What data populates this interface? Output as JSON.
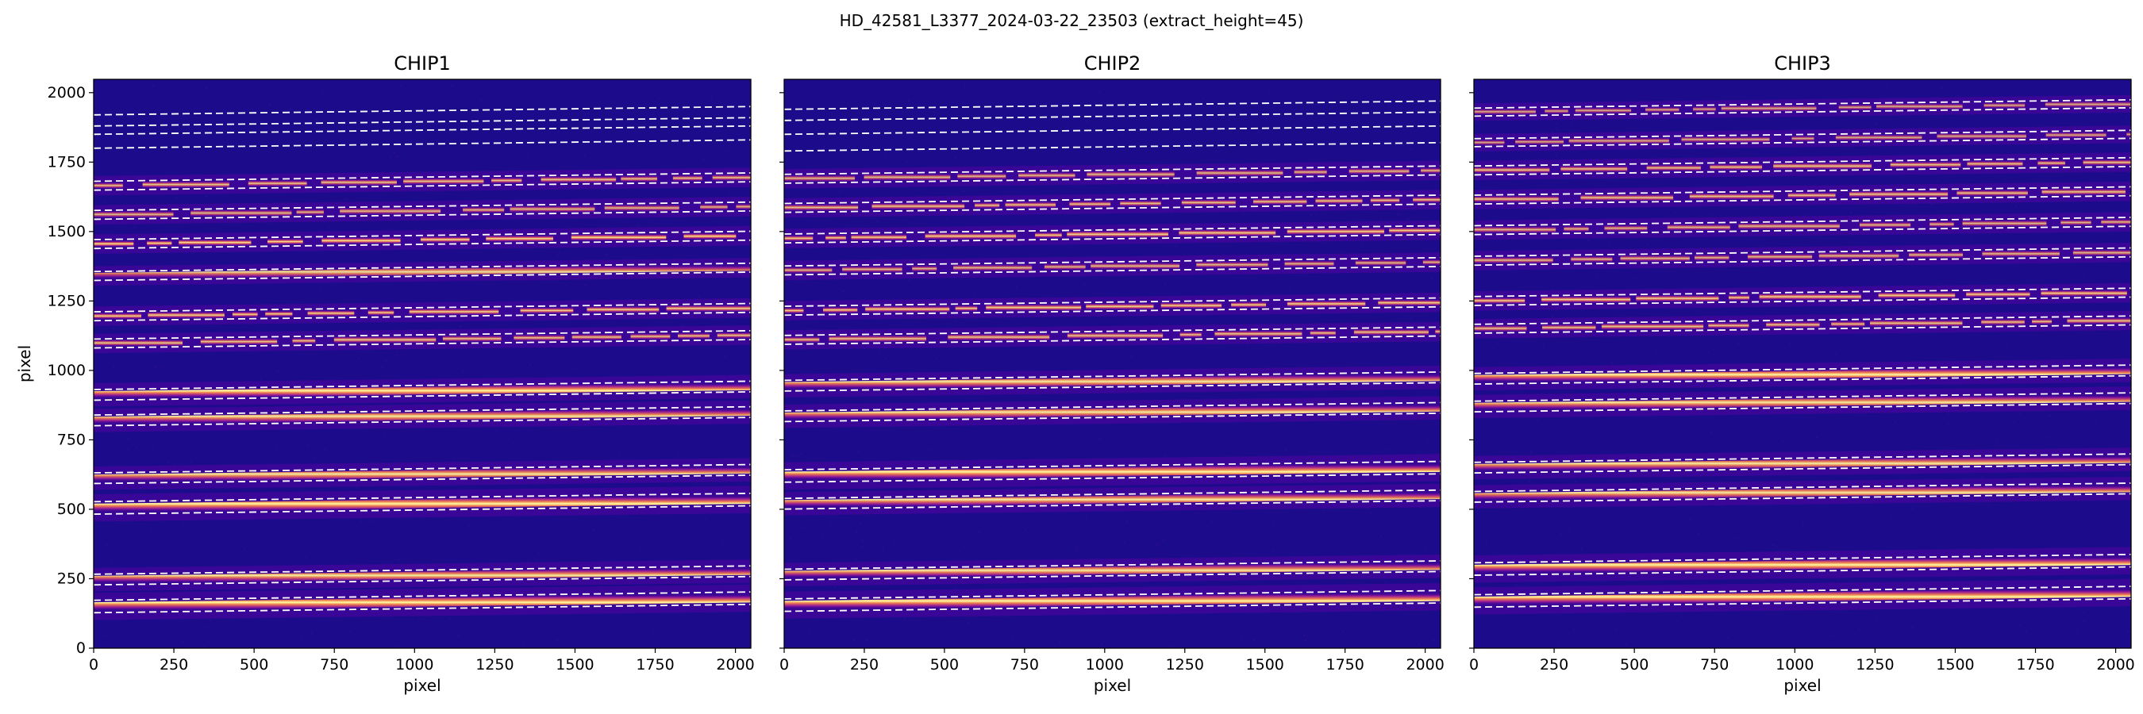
{
  "figure": {
    "suptitle": "HD_42581_L3377_2024-03-22_23503  (extract_height=45)"
  },
  "chart_data": [
    {
      "type": "heatmap",
      "title": "CHIP1",
      "xlabel": "pixel",
      "ylabel": "pixel",
      "xlim": [
        0,
        2048
      ],
      "ylim": [
        0,
        2048
      ],
      "xticks": [
        0,
        250,
        500,
        750,
        1000,
        1250,
        1500,
        1750,
        2000
      ],
      "yticks": [
        0,
        250,
        500,
        750,
        1000,
        1250,
        1500,
        1750,
        2000
      ],
      "colormap": "plasma",
      "background_color": "#1c0c8c",
      "order_color": "#f5e02a",
      "trace_line_color": "#ffffff",
      "orders": [
        {
          "center": 150,
          "tilt": 30,
          "width": 14,
          "strength": 1.0,
          "broken": false
        },
        {
          "center": 247,
          "tilt": 30,
          "width": 12,
          "strength": 0.95,
          "broken": false
        },
        {
          "center": 505,
          "tilt": 30,
          "width": 14,
          "strength": 1.0,
          "broken": false
        },
        {
          "center": 612,
          "tilt": 30,
          "width": 12,
          "strength": 0.95,
          "broken": false
        },
        {
          "center": 820,
          "tilt": 30,
          "width": 12,
          "strength": 0.95,
          "broken": false
        },
        {
          "center": 912,
          "tilt": 30,
          "width": 12,
          "strength": 1.0,
          "broken": false
        },
        {
          "center": 1097,
          "tilt": 30,
          "width": 10,
          "strength": 0.85,
          "broken": true
        },
        {
          "center": 1195,
          "tilt": 30,
          "width": 10,
          "strength": 0.9,
          "broken": true
        },
        {
          "center": 1340,
          "tilt": 30,
          "width": 10,
          "strength": 0.9,
          "broken": false
        },
        {
          "center": 1455,
          "tilt": 30,
          "width": 10,
          "strength": 0.95,
          "broken": true
        },
        {
          "center": 1560,
          "tilt": 30,
          "width": 10,
          "strength": 0.8,
          "broken": true
        },
        {
          "center": 1665,
          "tilt": 30,
          "width": 10,
          "strength": 0.85,
          "broken": true
        }
      ],
      "extra_trace_lines": [
        1800,
        1850,
        1880,
        1920
      ]
    },
    {
      "type": "heatmap",
      "title": "CHIP2",
      "xlabel": "pixel",
      "ylabel": "",
      "xlim": [
        0,
        2048
      ],
      "ylim": [
        0,
        2048
      ],
      "xticks": [
        0,
        250,
        500,
        750,
        1000,
        1250,
        1500,
        1750,
        2000
      ],
      "yticks": [
        0,
        250,
        500,
        750,
        1000,
        1250,
        1500,
        1750,
        2000
      ],
      "colormap": "plasma",
      "background_color": "#1c0c8c",
      "order_color": "#f5e02a",
      "trace_line_color": "#ffffff",
      "orders": [
        {
          "center": 155,
          "tilt": 30,
          "width": 14,
          "strength": 1.0,
          "broken": false
        },
        {
          "center": 265,
          "tilt": 30,
          "width": 12,
          "strength": 0.95,
          "broken": false
        },
        {
          "center": 520,
          "tilt": 30,
          "width": 12,
          "strength": 0.95,
          "broken": false
        },
        {
          "center": 620,
          "tilt": 30,
          "width": 14,
          "strength": 1.0,
          "broken": false
        },
        {
          "center": 835,
          "tilt": 30,
          "width": 12,
          "strength": 0.95,
          "broken": false
        },
        {
          "center": 945,
          "tilt": 30,
          "width": 12,
          "strength": 0.95,
          "broken": false
        },
        {
          "center": 1110,
          "tilt": 30,
          "width": 10,
          "strength": 0.85,
          "broken": true
        },
        {
          "center": 1215,
          "tilt": 30,
          "width": 10,
          "strength": 0.9,
          "broken": true
        },
        {
          "center": 1360,
          "tilt": 30,
          "width": 10,
          "strength": 0.8,
          "broken": true
        },
        {
          "center": 1475,
          "tilt": 30,
          "width": 10,
          "strength": 0.9,
          "broken": true
        },
        {
          "center": 1585,
          "tilt": 30,
          "width": 10,
          "strength": 0.85,
          "broken": true
        },
        {
          "center": 1690,
          "tilt": 30,
          "width": 10,
          "strength": 0.8,
          "broken": true
        }
      ],
      "extra_trace_lines": [
        1790,
        1850,
        1900,
        1940
      ]
    },
    {
      "type": "heatmap",
      "title": "CHIP3",
      "xlabel": "pixel",
      "ylabel": "",
      "xlim": [
        0,
        2048
      ],
      "ylim": [
        0,
        2048
      ],
      "xticks": [
        0,
        250,
        500,
        750,
        1000,
        1250,
        1500,
        1750,
        2000
      ],
      "yticks": [
        0,
        250,
        500,
        750,
        1000,
        1250,
        1500,
        1750,
        2000
      ],
      "colormap": "plasma",
      "background_color": "#1c0c8c",
      "order_color": "#f5e02a",
      "trace_line_color": "#ffffff",
      "orders": [
        {
          "center": 170,
          "tilt": 30,
          "width": 14,
          "strength": 1.0,
          "broken": false
        },
        {
          "center": 285,
          "tilt": 30,
          "width": 14,
          "strength": 1.0,
          "broken": false
        },
        {
          "center": 545,
          "tilt": 30,
          "width": 12,
          "strength": 0.95,
          "broken": false
        },
        {
          "center": 650,
          "tilt": 30,
          "width": 12,
          "strength": 0.95,
          "broken": false
        },
        {
          "center": 870,
          "tilt": 30,
          "width": 12,
          "strength": 0.95,
          "broken": false
        },
        {
          "center": 970,
          "tilt": 30,
          "width": 12,
          "strength": 1.0,
          "broken": false
        },
        {
          "center": 1150,
          "tilt": 30,
          "width": 10,
          "strength": 0.85,
          "broken": true
        },
        {
          "center": 1250,
          "tilt": 30,
          "width": 10,
          "strength": 0.9,
          "broken": true
        },
        {
          "center": 1395,
          "tilt": 30,
          "width": 10,
          "strength": 0.8,
          "broken": true
        },
        {
          "center": 1505,
          "tilt": 30,
          "width": 10,
          "strength": 0.8,
          "broken": true
        },
        {
          "center": 1615,
          "tilt": 30,
          "width": 10,
          "strength": 0.85,
          "broken": true
        },
        {
          "center": 1720,
          "tilt": 30,
          "width": 10,
          "strength": 0.85,
          "broken": true
        },
        {
          "center": 1820,
          "tilt": 30,
          "width": 9,
          "strength": 0.75,
          "broken": true
        },
        {
          "center": 1930,
          "tilt": 30,
          "width": 9,
          "strength": 0.75,
          "broken": true
        }
      ],
      "extra_trace_lines": []
    }
  ]
}
